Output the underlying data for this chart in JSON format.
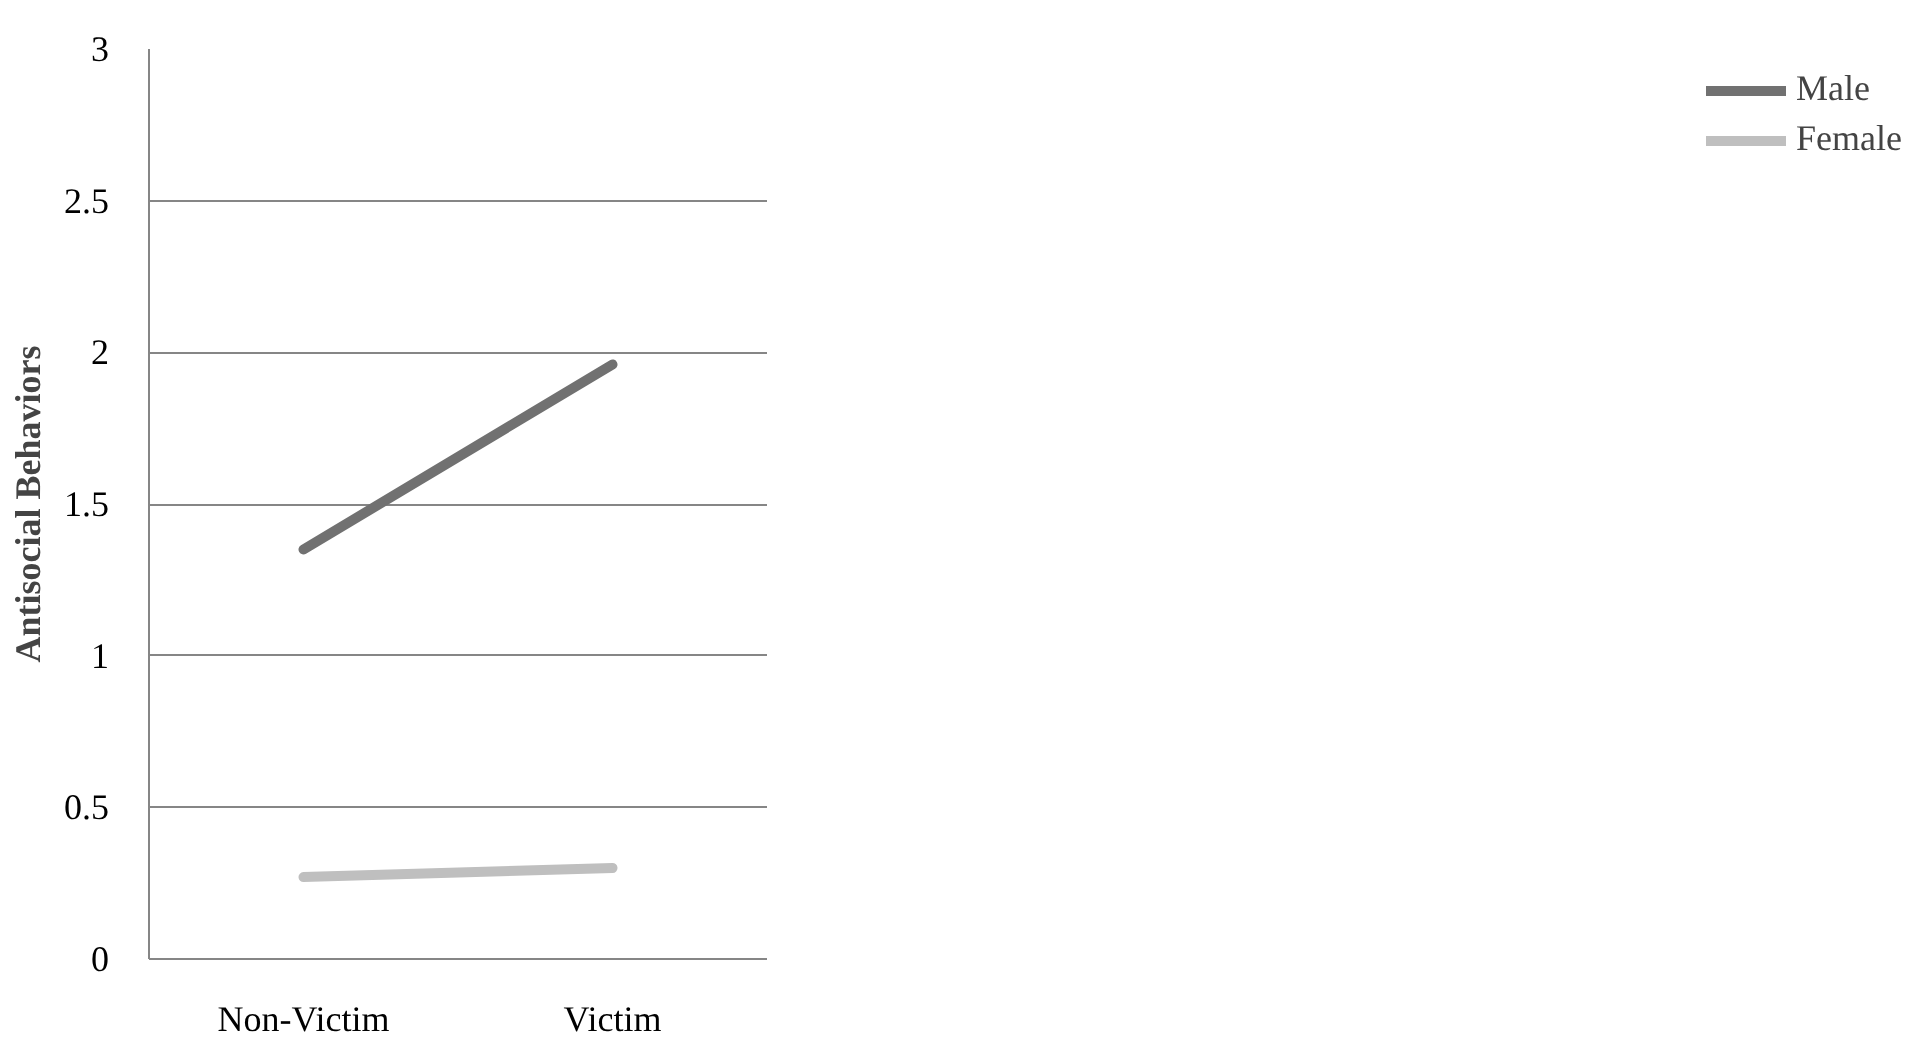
{
  "chart_data": {
    "type": "line",
    "ylabel": "Antisocial Behaviors",
    "categories": [
      "Non-Victim",
      "Victim"
    ],
    "series": [
      {
        "name": "Male",
        "color": "#717171",
        "values": [
          1.35,
          1.96
        ]
      },
      {
        "name": "Female",
        "color": "#bfbfbf",
        "values": [
          0.27,
          0.3
        ]
      }
    ],
    "ylim": [
      0,
      3
    ],
    "yticks": [
      0,
      0.5,
      1,
      1.5,
      2,
      2.5,
      3
    ],
    "grid": "y",
    "legend": "right",
    "marker": "none",
    "line_style": "solid"
  }
}
